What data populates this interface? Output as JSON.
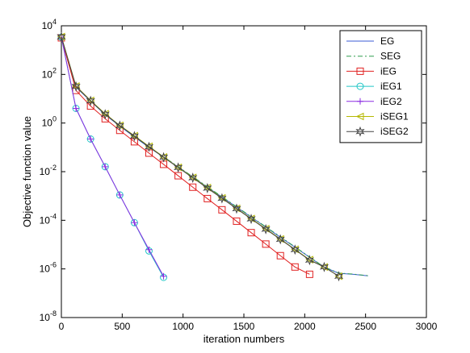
{
  "chart_data": {
    "type": "line",
    "xlabel": "iteration numbers",
    "ylabel": "Objective function value",
    "xlim": [
      0,
      3000
    ],
    "ylim": [
      1e-08,
      10000.0
    ],
    "yscale": "log",
    "xticks": [
      "0",
      "500",
      "1000",
      "1500",
      "2000",
      "2500",
      "3000"
    ],
    "yticks": [
      {
        "base": "10",
        "exp": "4"
      },
      {
        "base": "10",
        "exp": "2"
      },
      {
        "base": "10",
        "exp": "0"
      },
      {
        "base": "10",
        "exp": "-2"
      },
      {
        "base": "10",
        "exp": "-4"
      },
      {
        "base": "10",
        "exp": "-6"
      },
      {
        "base": "10",
        "exp": "-8"
      }
    ],
    "legend_position": "top-right",
    "grid": false,
    "series": [
      {
        "name": "EG",
        "color": "#3b5bd6",
        "marker": "none",
        "dash": "",
        "x": [
          0,
          120,
          240,
          360,
          480,
          600,
          720,
          840,
          960,
          1080,
          1200,
          1320,
          1440,
          1560,
          1680,
          1800,
          1920,
          2040,
          2160,
          2280,
          2400,
          2520
        ],
        "y": [
          3500,
          30,
          8,
          2.2,
          0.75,
          0.27,
          0.1,
          0.04,
          0.0155,
          0.006,
          0.0023,
          0.0009,
          0.00035,
          0.000135,
          5.2e-05,
          2e-05,
          7.8e-06,
          3e-06,
          1.18e-06,
          6.6e-07,
          6e-07,
          5.2e-07
        ]
      },
      {
        "name": "SEG",
        "color": "#2e9e4f",
        "marker": "none",
        "dash": "6,3,2,3",
        "x": [
          0,
          120,
          240,
          360,
          480,
          600,
          720,
          840,
          960,
          1080,
          1200,
          1320,
          1440,
          1560,
          1680,
          1800,
          1920,
          2040,
          2160,
          2280,
          2400,
          2520
        ],
        "y": [
          3600,
          31,
          8.2,
          2.25,
          0.78,
          0.28,
          0.105,
          0.041,
          0.016,
          0.0062,
          0.0024,
          0.00093,
          0.00036,
          0.00014,
          5.4e-05,
          2.1e-05,
          8.1e-06,
          3.1e-06,
          1.2e-06,
          6.8e-07,
          6.1e-07,
          5.3e-07
        ]
      },
      {
        "name": "iEG",
        "color": "#e02020",
        "marker": "square",
        "dash": "",
        "x": [
          0,
          120,
          240,
          360,
          480,
          600,
          720,
          840,
          960,
          1080,
          1200,
          1320,
          1440,
          1560,
          1680,
          1800,
          1920,
          2040
        ],
        "y": [
          3200,
          22,
          5,
          1.5,
          0.5,
          0.17,
          0.058,
          0.02,
          0.0068,
          0.0023,
          0.00078,
          0.00027,
          9.2e-05,
          3.1e-05,
          1.05e-05,
          3.5e-06,
          1.2e-06,
          6e-07
        ]
      },
      {
        "name": "iEG1",
        "color": "#22c7c7",
        "marker": "circle",
        "dash": "",
        "x": [
          0,
          120,
          240,
          360,
          480,
          600,
          720,
          840
        ],
        "y": [
          3400,
          4,
          0.22,
          0.016,
          0.0011,
          8e-05,
          5.5e-06,
          4.5e-07
        ]
      },
      {
        "name": "iEG2",
        "color": "#8a2be2",
        "marker": "plus",
        "dash": "",
        "x": [
          0,
          120,
          240,
          360,
          480,
          600,
          720,
          840
        ],
        "y": [
          3400,
          4,
          0.22,
          0.016,
          0.0011,
          8e-05,
          6.2e-06,
          5e-07
        ]
      },
      {
        "name": "iSEG1",
        "color": "#b5b800",
        "marker": "triangle-left",
        "dash": "",
        "x": [
          0,
          120,
          240,
          360,
          480,
          600,
          720,
          840,
          960,
          1080,
          1200,
          1320,
          1440,
          1560,
          1680,
          1800,
          1920,
          2040,
          2160,
          2280
        ],
        "y": [
          3600,
          33,
          8.5,
          2.4,
          0.8,
          0.3,
          0.11,
          0.04,
          0.015,
          0.0058,
          0.0022,
          0.00083,
          0.00031,
          0.000118,
          4.5e-05,
          1.7e-05,
          6.4e-06,
          2.4e-06,
          1.2e-06,
          5e-07
        ]
      },
      {
        "name": "iSEG2",
        "color": "#444444",
        "marker": "star",
        "dash": "",
        "x": [
          0,
          120,
          240,
          360,
          480,
          600,
          720,
          840,
          960,
          1080,
          1200,
          1320,
          1440,
          1560,
          1680,
          1800,
          1920,
          2040,
          2160,
          2280
        ],
        "y": [
          3500,
          32,
          8.2,
          2.3,
          0.78,
          0.29,
          0.105,
          0.039,
          0.0148,
          0.0056,
          0.0021,
          0.0008,
          0.0003,
          0.000114,
          4.3e-05,
          1.65e-05,
          6.2e-06,
          2.3e-06,
          1.2e-06,
          5e-07
        ]
      }
    ]
  }
}
